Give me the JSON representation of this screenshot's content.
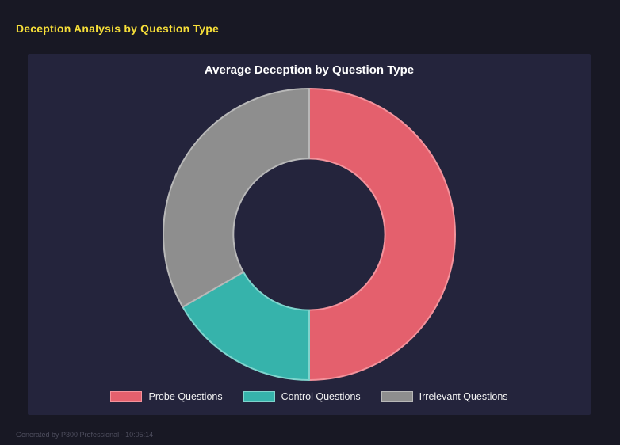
{
  "page": {
    "title": "Deception Analysis by Question Type",
    "footer": "Generated by P300 Professional - 10:05:14"
  },
  "colors": {
    "bg": "#181824",
    "panel": "#24243c",
    "title_yellow": "#f7df39",
    "text_white": "#f2f2f2",
    "footer_gray": "#4e4e5e"
  },
  "chart_data": {
    "type": "pie",
    "subtype": "doughnut",
    "title": "Average Deception by Question Type",
    "labels": [
      "Probe Questions",
      "Control Questions",
      "Irrelevant Questions"
    ],
    "values": [
      50.0,
      16.7,
      33.3
    ],
    "unit": "percent_of_total_estimated",
    "colors": [
      "#e4606d",
      "#36b3ab",
      "#8e8e8e"
    ],
    "border_colors": [
      "#f3939c",
      "#7fd4cd",
      "#b8b8b8"
    ],
    "start_angle_deg_from_top": 0,
    "direction": "clockwise",
    "inner_radius_ratio": 0.52,
    "legend_position": "bottom"
  }
}
